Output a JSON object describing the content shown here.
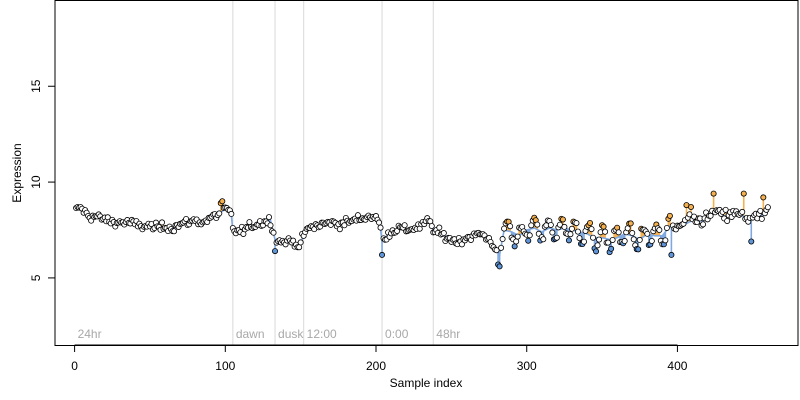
{
  "chart_data": {
    "type": "scatter",
    "title": "",
    "xlabel": "Sample index",
    "ylabel": "Expression",
    "xlim": [
      -13,
      480
    ],
    "ylim": [
      1.5,
      19.5
    ],
    "x_ticks": [
      0,
      100,
      200,
      300,
      400
    ],
    "y_ticks": [
      5,
      10,
      15
    ],
    "grid": false,
    "legend": "none",
    "colors": {
      "point_stroke": "#000000",
      "point_fill_high": "#f5b04f",
      "point_fill_low": "#5f95d9",
      "segment_high": "#f5b04f",
      "segment_low": "#7fa8e0",
      "region_line": "#d9d9d9",
      "region_label": "#a8a8a8"
    },
    "regions": [
      {
        "label": "24hr",
        "start": 0
      },
      {
        "label": "dawn",
        "start": 105
      },
      {
        "label": "dusk",
        "start": 133
      },
      {
        "label": "12:00",
        "start": 152
      },
      {
        "label": "0:00",
        "start": 204
      },
      {
        "label": "48hr",
        "start": 238
      }
    ],
    "n_points": 460,
    "anchors": [
      [
        1,
        8.5
      ],
      [
        3,
        8.7
      ],
      [
        6,
        8.5
      ],
      [
        10,
        8.2
      ],
      [
        14,
        8.2
      ],
      [
        18,
        8.1
      ],
      [
        22,
        8.0
      ],
      [
        26,
        7.9
      ],
      [
        30,
        7.9
      ],
      [
        35,
        7.9
      ],
      [
        40,
        7.8
      ],
      [
        45,
        7.7
      ],
      [
        50,
        7.7
      ],
      [
        55,
        7.6
      ],
      [
        60,
        7.7
      ],
      [
        65,
        7.6
      ],
      [
        70,
        7.8
      ],
      [
        75,
        7.9
      ],
      [
        80,
        8.0
      ],
      [
        85,
        7.9
      ],
      [
        90,
        8.1
      ],
      [
        95,
        8.3
      ],
      [
        100,
        8.6
      ],
      [
        104,
        8.3
      ],
      [
        105,
        7.5
      ],
      [
        110,
        7.4
      ],
      [
        115,
        7.6
      ],
      [
        120,
        7.8
      ],
      [
        125,
        7.9
      ],
      [
        130,
        8.0
      ],
      [
        133,
        7.0
      ],
      [
        136,
        6.9
      ],
      [
        140,
        6.9
      ],
      [
        145,
        6.9
      ],
      [
        150,
        6.7
      ],
      [
        152,
        7.3
      ],
      [
        156,
        7.6
      ],
      [
        160,
        7.7
      ],
      [
        165,
        7.8
      ],
      [
        170,
        7.9
      ],
      [
        175,
        7.8
      ],
      [
        180,
        7.9
      ],
      [
        185,
        8.0
      ],
      [
        190,
        8.1
      ],
      [
        195,
        8.2
      ],
      [
        200,
        8.2
      ],
      [
        203,
        7.6
      ],
      [
        204,
        6.9
      ],
      [
        208,
        7.3
      ],
      [
        212,
        7.5
      ],
      [
        216,
        7.6
      ],
      [
        220,
        7.5
      ],
      [
        225,
        7.6
      ],
      [
        230,
        7.7
      ],
      [
        235,
        8.0
      ],
      [
        238,
        7.5
      ],
      [
        245,
        7.2
      ],
      [
        250,
        7.0
      ],
      [
        255,
        6.9
      ],
      [
        260,
        7.1
      ],
      [
        265,
        7.2
      ],
      [
        270,
        7.3
      ],
      [
        275,
        7.0
      ],
      [
        279,
        6.6
      ],
      [
        282,
        6.2
      ],
      [
        285,
        7.5
      ],
      [
        290,
        7.4
      ],
      [
        295,
        7.2
      ],
      [
        300,
        7.5
      ],
      [
        305,
        7.6
      ],
      [
        310,
        7.4
      ],
      [
        315,
        7.6
      ],
      [
        320,
        7.5
      ],
      [
        325,
        7.6
      ],
      [
        330,
        7.5
      ],
      [
        335,
        7.4
      ],
      [
        340,
        7.3
      ],
      [
        345,
        7.1
      ],
      [
        350,
        7.1
      ],
      [
        355,
        7.0
      ],
      [
        360,
        7.1
      ],
      [
        365,
        7.3
      ],
      [
        370,
        7.2
      ],
      [
        375,
        7.0
      ],
      [
        380,
        7.3
      ],
      [
        385,
        7.2
      ],
      [
        390,
        7.2
      ],
      [
        395,
        7.7
      ],
      [
        400,
        7.6
      ],
      [
        405,
        7.8
      ],
      [
        410,
        8.0
      ],
      [
        415,
        8.0
      ],
      [
        420,
        8.1
      ],
      [
        425,
        8.5
      ],
      [
        430,
        8.2
      ],
      [
        435,
        8.3
      ],
      [
        440,
        8.3
      ],
      [
        445,
        8.2
      ],
      [
        450,
        8.1
      ],
      [
        455,
        8.2
      ],
      [
        460,
        8.5
      ]
    ],
    "oscillation": {
      "start": 285,
      "end": 395,
      "period": 9,
      "amplitude": 0.55
    },
    "extremes": [
      {
        "x": 97,
        "y": 8.9
      },
      {
        "x": 98,
        "y": 9.0
      },
      {
        "x": 133,
        "y": 6.4
      },
      {
        "x": 148,
        "y": 6.6
      },
      {
        "x": 204,
        "y": 6.2
      },
      {
        "x": 281,
        "y": 5.7
      },
      {
        "x": 282,
        "y": 5.6
      },
      {
        "x": 396,
        "y": 6.2
      },
      {
        "x": 406,
        "y": 8.8
      },
      {
        "x": 409,
        "y": 8.7
      },
      {
        "x": 424,
        "y": 9.4
      },
      {
        "x": 444,
        "y": 9.4
      },
      {
        "x": 449,
        "y": 6.9
      },
      {
        "x": 457,
        "y": 9.2
      }
    ]
  }
}
